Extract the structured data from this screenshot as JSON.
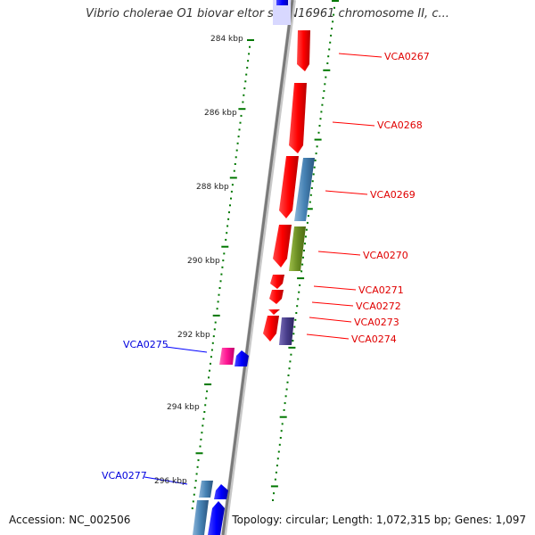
{
  "title": "Vibrio cholerae O1 biovar eltor str. N16961 chromosome II, c...",
  "footer": {
    "accession": "Accession: NC_002506",
    "info": "Topology: circular; Length: 1,072,315 bp; Genes: 1,097"
  },
  "scale_labels": [
    "284 kbp",
    "286 kbp",
    "288 kbp",
    "290 kbp",
    "292 kbp",
    "294 kbp",
    "296 kbp"
  ],
  "genes": [
    {
      "name": "VCA0267",
      "strand": "forward",
      "color": "#e8000a"
    },
    {
      "name": "VCA0268",
      "strand": "forward",
      "color": "#e8000a"
    },
    {
      "name": "VCA0269",
      "strand": "forward",
      "color": "#e8000a"
    },
    {
      "name": "VCA0270",
      "strand": "forward",
      "color": "#e8000a"
    },
    {
      "name": "VCA0271",
      "strand": "forward",
      "color": "#e8000a"
    },
    {
      "name": "VCA0272",
      "strand": "forward",
      "color": "#e8000a"
    },
    {
      "name": "VCA0273",
      "strand": "forward",
      "color": "#e8000a"
    },
    {
      "name": "VCA0274",
      "strand": "forward",
      "color": "#e8000a"
    },
    {
      "name": "VCA0275",
      "strand": "reverse",
      "color": "#0000ff"
    },
    {
      "name": "VCA0277",
      "strand": "reverse",
      "color": "#0000ff"
    }
  ],
  "feature_colors": {
    "forward_gene": "#e8000a",
    "reverse_gene": "#0000ff",
    "steelblue": "#4682b4",
    "olive": "#6b8e23",
    "purple": "#483d8b",
    "pink": "#ff1493",
    "ticks": "#007700",
    "backbone": "#808080"
  }
}
